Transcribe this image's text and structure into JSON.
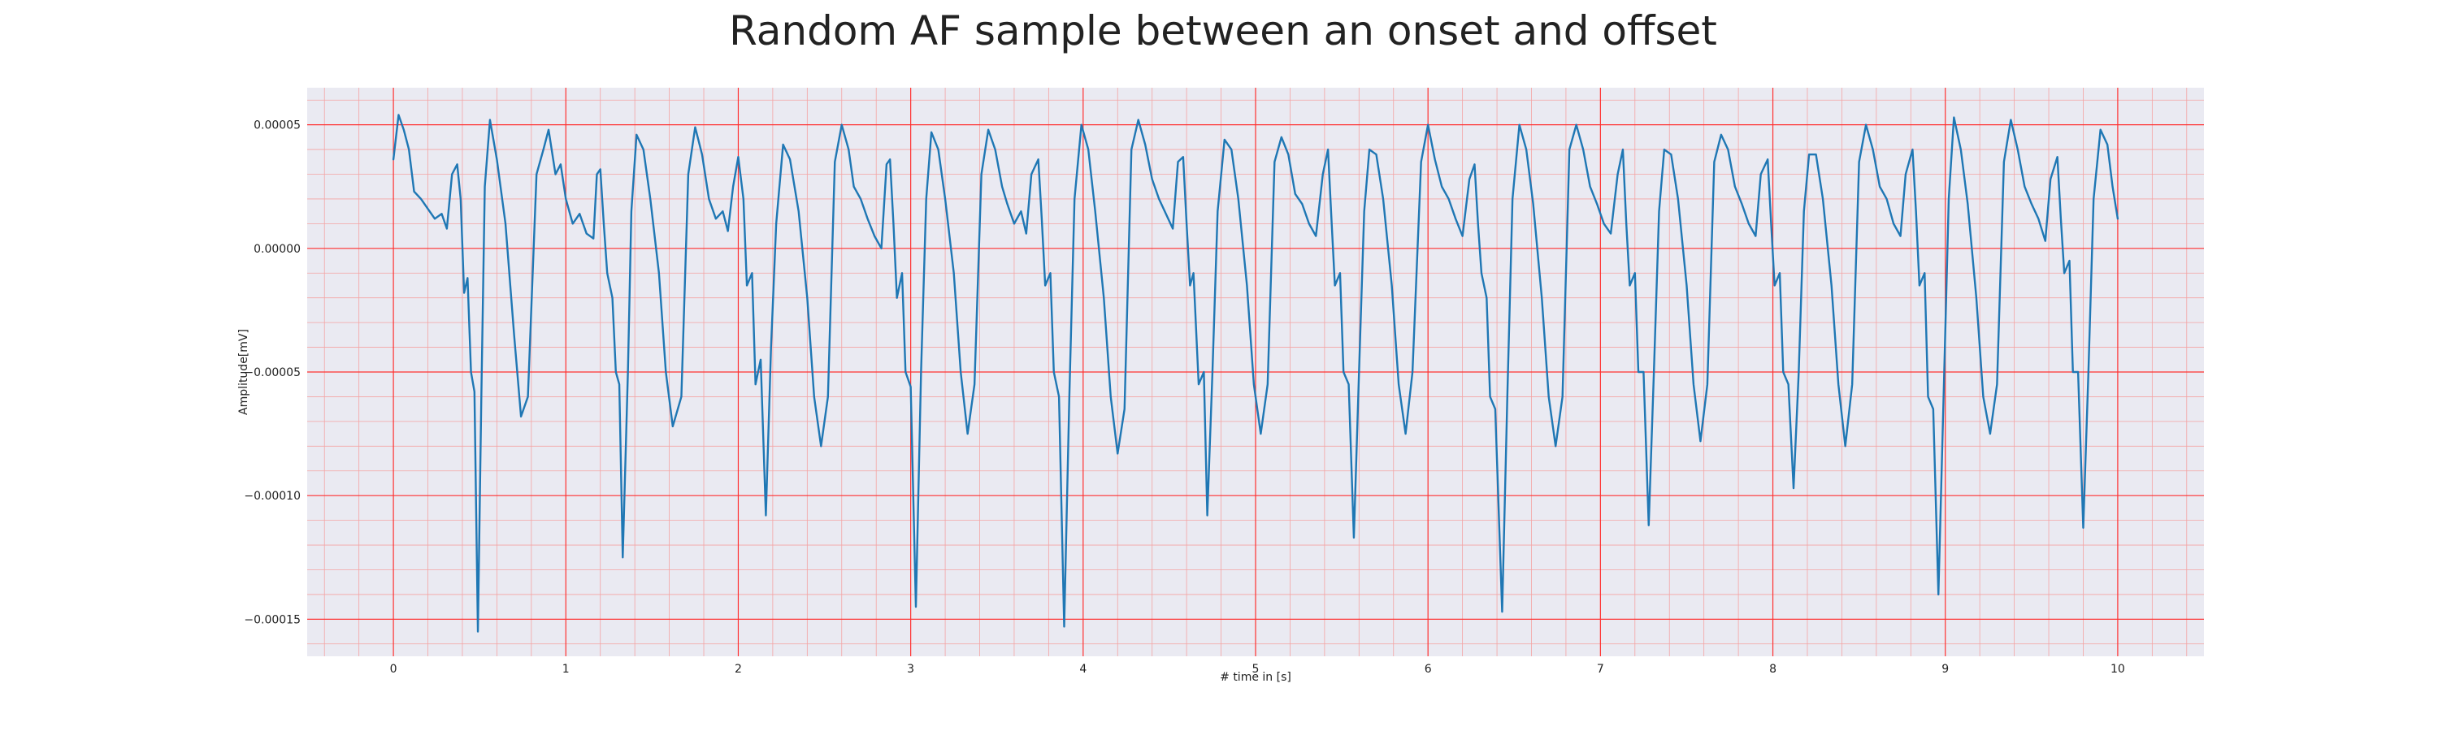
{
  "chart_data": {
    "type": "line",
    "title": "Random AF sample between an onset and offset",
    "xlabel": "# time in [s]",
    "ylabel": "Amplitude[mV]",
    "xlim": [
      -0.5,
      10.5
    ],
    "ylim": [
      -0.000165,
      6.5e-05
    ],
    "x_ticks": [
      0,
      1,
      2,
      3,
      4,
      5,
      6,
      7,
      8,
      9,
      10
    ],
    "x_tick_labels": [
      "0",
      "1",
      "2",
      "3",
      "4",
      "5",
      "6",
      "7",
      "8",
      "9",
      "10"
    ],
    "y_ticks": [
      5e-05,
      0.0,
      -5e-05,
      -0.0001,
      -0.00015
    ],
    "y_tick_labels": [
      "0.00005",
      "0.00000",
      "−0.00005",
      "−0.00010",
      "−0.00015"
    ],
    "grid": true,
    "minor_grid": true,
    "colors": {
      "line": "#1f77b4",
      "plot_background": "#eaeaf2",
      "major_grid": "#ff3030",
      "minor_grid": "#f4a3a3"
    },
    "series": [
      {
        "values": [
          [
            0.0,
            3.6e-05
          ],
          [
            0.03,
            5.4e-05
          ],
          [
            0.06,
            4.8e-05
          ],
          [
            0.09,
            4e-05
          ],
          [
            0.12,
            2.3e-05
          ],
          [
            0.16,
            2e-05
          ],
          [
            0.2,
            1.6e-05
          ],
          [
            0.24,
            1.2e-05
          ],
          [
            0.28,
            1.4e-05
          ],
          [
            0.31,
            8e-06
          ],
          [
            0.34,
            3e-05
          ],
          [
            0.37,
            3.4e-05
          ],
          [
            0.39,
            2e-05
          ],
          [
            0.41,
            -1.8e-05
          ],
          [
            0.43,
            -1.2e-05
          ],
          [
            0.45,
            -5e-05
          ],
          [
            0.47,
            -5.8e-05
          ],
          [
            0.49,
            -0.000155
          ],
          [
            0.51,
            -6e-05
          ],
          [
            0.53,
            2.5e-05
          ],
          [
            0.56,
            5.2e-05
          ],
          [
            0.6,
            3.6e-05
          ],
          [
            0.65,
            1e-05
          ],
          [
            0.7,
            -3.5e-05
          ],
          [
            0.74,
            -6.8e-05
          ],
          [
            0.78,
            -6e-05
          ],
          [
            0.83,
            3e-05
          ],
          [
            0.87,
            4e-05
          ],
          [
            0.9,
            4.8e-05
          ],
          [
            0.94,
            3e-05
          ],
          [
            0.97,
            3.4e-05
          ],
          [
            1.0,
            2e-05
          ],
          [
            1.04,
            1e-05
          ],
          [
            1.08,
            1.4e-05
          ],
          [
            1.12,
            6e-06
          ],
          [
            1.16,
            4e-06
          ],
          [
            1.18,
            3e-05
          ],
          [
            1.2,
            3.2e-05
          ],
          [
            1.22,
            1e-05
          ],
          [
            1.24,
            -1e-05
          ],
          [
            1.27,
            -2e-05
          ],
          [
            1.29,
            -5e-05
          ],
          [
            1.31,
            -5.5e-05
          ],
          [
            1.33,
            -0.000125
          ],
          [
            1.36,
            -5e-05
          ],
          [
            1.38,
            1.5e-05
          ],
          [
            1.41,
            4.6e-05
          ],
          [
            1.45,
            4e-05
          ],
          [
            1.49,
            2e-05
          ],
          [
            1.54,
            -1e-05
          ],
          [
            1.58,
            -5e-05
          ],
          [
            1.62,
            -7.2e-05
          ],
          [
            1.67,
            -6e-05
          ],
          [
            1.71,
            3e-05
          ],
          [
            1.75,
            4.9e-05
          ],
          [
            1.79,
            3.8e-05
          ],
          [
            1.83,
            2e-05
          ],
          [
            1.87,
            1.2e-05
          ],
          [
            1.91,
            1.5e-05
          ],
          [
            1.94,
            7e-06
          ],
          [
            1.97,
            2.5e-05
          ],
          [
            2.0,
            3.7e-05
          ],
          [
            2.03,
            2e-05
          ],
          [
            2.05,
            -1.5e-05
          ],
          [
            2.08,
            -1e-05
          ],
          [
            2.1,
            -5.5e-05
          ],
          [
            2.13,
            -4.5e-05
          ],
          [
            2.16,
            -0.000108
          ],
          [
            2.19,
            -4e-05
          ],
          [
            2.22,
            1e-05
          ],
          [
            2.26,
            4.2e-05
          ],
          [
            2.3,
            3.6e-05
          ],
          [
            2.35,
            1.5e-05
          ],
          [
            2.4,
            -2e-05
          ],
          [
            2.44,
            -6e-05
          ],
          [
            2.48,
            -8e-05
          ],
          [
            2.52,
            -6e-05
          ],
          [
            2.56,
            3.5e-05
          ],
          [
            2.6,
            5e-05
          ],
          [
            2.64,
            4e-05
          ],
          [
            2.67,
            2.5e-05
          ],
          [
            2.71,
            2e-05
          ],
          [
            2.75,
            1.2e-05
          ],
          [
            2.79,
            5e-06
          ],
          [
            2.83,
            0.0
          ],
          [
            2.86,
            3.4e-05
          ],
          [
            2.88,
            3.6e-05
          ],
          [
            2.9,
            1e-05
          ],
          [
            2.92,
            -2e-05
          ],
          [
            2.95,
            -1e-05
          ],
          [
            2.97,
            -5e-05
          ],
          [
            3.0,
            -5.6e-05
          ],
          [
            3.03,
            -0.000145
          ],
          [
            3.06,
            -5e-05
          ],
          [
            3.09,
            2e-05
          ],
          [
            3.12,
            4.7e-05
          ],
          [
            3.16,
            4e-05
          ],
          [
            3.2,
            2e-05
          ],
          [
            3.25,
            -1e-05
          ],
          [
            3.29,
            -5e-05
          ],
          [
            3.33,
            -7.5e-05
          ],
          [
            3.37,
            -5.5e-05
          ],
          [
            3.41,
            3e-05
          ],
          [
            3.45,
            4.8e-05
          ],
          [
            3.49,
            4e-05
          ],
          [
            3.53,
            2.5e-05
          ],
          [
            3.56,
            1.8e-05
          ],
          [
            3.6,
            1e-05
          ],
          [
            3.64,
            1.5e-05
          ],
          [
            3.67,
            6e-06
          ],
          [
            3.7,
            3e-05
          ],
          [
            3.74,
            3.6e-05
          ],
          [
            3.76,
            1.2e-05
          ],
          [
            3.78,
            -1.5e-05
          ],
          [
            3.81,
            -1e-05
          ],
          [
            3.83,
            -5e-05
          ],
          [
            3.86,
            -6e-05
          ],
          [
            3.89,
            -0.000153
          ],
          [
            3.92,
            -6e-05
          ],
          [
            3.95,
            2e-05
          ],
          [
            3.99,
            5e-05
          ],
          [
            4.03,
            4e-05
          ],
          [
            4.07,
            1.5e-05
          ],
          [
            4.12,
            -2e-05
          ],
          [
            4.16,
            -6e-05
          ],
          [
            4.2,
            -8.3e-05
          ],
          [
            4.24,
            -6.5e-05
          ],
          [
            4.28,
            4e-05
          ],
          [
            4.32,
            5.2e-05
          ],
          [
            4.36,
            4.2e-05
          ],
          [
            4.4,
            2.8e-05
          ],
          [
            4.44,
            2e-05
          ],
          [
            4.48,
            1.4e-05
          ],
          [
            4.52,
            8e-06
          ],
          [
            4.55,
            3.5e-05
          ],
          [
            4.58,
            3.7e-05
          ],
          [
            4.6,
            1e-05
          ],
          [
            4.62,
            -1.5e-05
          ],
          [
            4.64,
            -1e-05
          ],
          [
            4.67,
            -5.5e-05
          ],
          [
            4.7,
            -5e-05
          ],
          [
            4.72,
            -0.000108
          ],
          [
            4.75,
            -5e-05
          ],
          [
            4.78,
            1.5e-05
          ],
          [
            4.82,
            4.4e-05
          ],
          [
            4.86,
            4e-05
          ],
          [
            4.9,
            2e-05
          ],
          [
            4.95,
            -1.5e-05
          ],
          [
            4.99,
            -5.5e-05
          ],
          [
            5.03,
            -7.5e-05
          ],
          [
            5.07,
            -5.5e-05
          ],
          [
            5.11,
            3.5e-05
          ],
          [
            5.15,
            4.5e-05
          ],
          [
            5.19,
            3.8e-05
          ],
          [
            5.23,
            2.2e-05
          ],
          [
            5.27,
            1.8e-05
          ],
          [
            5.31,
            1e-05
          ],
          [
            5.35,
            5e-06
          ],
          [
            5.39,
            3e-05
          ],
          [
            5.42,
            4e-05
          ],
          [
            5.44,
            1.2e-05
          ],
          [
            5.46,
            -1.5e-05
          ],
          [
            5.49,
            -1e-05
          ],
          [
            5.51,
            -5e-05
          ],
          [
            5.54,
            -5.5e-05
          ],
          [
            5.57,
            -0.000117
          ],
          [
            5.6,
            -5e-05
          ],
          [
            5.63,
            1.5e-05
          ],
          [
            5.66,
            4e-05
          ],
          [
            5.7,
            3.8e-05
          ],
          [
            5.74,
            2e-05
          ],
          [
            5.79,
            -1.5e-05
          ],
          [
            5.83,
            -5.5e-05
          ],
          [
            5.87,
            -7.5e-05
          ],
          [
            5.91,
            -5e-05
          ],
          [
            5.96,
            3.5e-05
          ],
          [
            6.0,
            5e-05
          ],
          [
            6.04,
            3.6e-05
          ],
          [
            6.08,
            2.5e-05
          ],
          [
            6.12,
            2e-05
          ],
          [
            6.16,
            1.2e-05
          ],
          [
            6.2,
            5e-06
          ],
          [
            6.24,
            2.8e-05
          ],
          [
            6.27,
            3.4e-05
          ],
          [
            6.29,
            1e-05
          ],
          [
            6.31,
            -1e-05
          ],
          [
            6.34,
            -2e-05
          ],
          [
            6.36,
            -6e-05
          ],
          [
            6.39,
            -6.5e-05
          ],
          [
            6.43,
            -0.000147
          ],
          [
            6.46,
            -6e-05
          ],
          [
            6.49,
            2e-05
          ],
          [
            6.53,
            5e-05
          ],
          [
            6.57,
            4e-05
          ],
          [
            6.61,
            1.8e-05
          ],
          [
            6.66,
            -2e-05
          ],
          [
            6.7,
            -6e-05
          ],
          [
            6.74,
            -8e-05
          ],
          [
            6.78,
            -6e-05
          ],
          [
            6.82,
            4e-05
          ],
          [
            6.86,
            5e-05
          ],
          [
            6.9,
            4e-05
          ],
          [
            6.94,
            2.5e-05
          ],
          [
            6.98,
            1.8e-05
          ],
          [
            7.02,
            1e-05
          ],
          [
            7.06,
            6e-06
          ],
          [
            7.1,
            3e-05
          ],
          [
            7.13,
            4e-05
          ],
          [
            7.15,
            1e-05
          ],
          [
            7.17,
            -1.5e-05
          ],
          [
            7.2,
            -1e-05
          ],
          [
            7.22,
            -5e-05
          ],
          [
            7.25,
            -5e-05
          ],
          [
            7.28,
            -0.000112
          ],
          [
            7.31,
            -5e-05
          ],
          [
            7.34,
            1.5e-05
          ],
          [
            7.37,
            4e-05
          ],
          [
            7.41,
            3.8e-05
          ],
          [
            7.45,
            2e-05
          ],
          [
            7.5,
            -1.5e-05
          ],
          [
            7.54,
            -5.5e-05
          ],
          [
            7.58,
            -7.8e-05
          ],
          [
            7.62,
            -5.5e-05
          ],
          [
            7.66,
            3.5e-05
          ],
          [
            7.7,
            4.6e-05
          ],
          [
            7.74,
            4e-05
          ],
          [
            7.78,
            2.5e-05
          ],
          [
            7.82,
            1.8e-05
          ],
          [
            7.86,
            1e-05
          ],
          [
            7.9,
            5e-06
          ],
          [
            7.93,
            3e-05
          ],
          [
            7.97,
            3.6e-05
          ],
          [
            7.99,
            1e-05
          ],
          [
            8.01,
            -1.5e-05
          ],
          [
            8.04,
            -1e-05
          ],
          [
            8.06,
            -5e-05
          ],
          [
            8.09,
            -5.5e-05
          ],
          [
            8.12,
            -9.7e-05
          ],
          [
            8.15,
            -5e-05
          ],
          [
            8.18,
            1.5e-05
          ],
          [
            8.21,
            3.8e-05
          ],
          [
            8.25,
            3.8e-05
          ],
          [
            8.29,
            2e-05
          ],
          [
            8.34,
            -1.5e-05
          ],
          [
            8.38,
            -5.5e-05
          ],
          [
            8.42,
            -8e-05
          ],
          [
            8.46,
            -5.5e-05
          ],
          [
            8.5,
            3.5e-05
          ],
          [
            8.54,
            5e-05
          ],
          [
            8.58,
            4e-05
          ],
          [
            8.62,
            2.5e-05
          ],
          [
            8.66,
            2e-05
          ],
          [
            8.7,
            1e-05
          ],
          [
            8.74,
            5e-06
          ],
          [
            8.77,
            3e-05
          ],
          [
            8.81,
            4e-05
          ],
          [
            8.83,
            1.5e-05
          ],
          [
            8.85,
            -1.5e-05
          ],
          [
            8.88,
            -1e-05
          ],
          [
            8.9,
            -6e-05
          ],
          [
            8.93,
            -6.5e-05
          ],
          [
            8.96,
            -0.00014
          ],
          [
            8.99,
            -6e-05
          ],
          [
            9.02,
            2e-05
          ],
          [
            9.05,
            5.3e-05
          ],
          [
            9.09,
            4e-05
          ],
          [
            9.13,
            1.8e-05
          ],
          [
            9.18,
            -2e-05
          ],
          [
            9.22,
            -6e-05
          ],
          [
            9.26,
            -7.5e-05
          ],
          [
            9.3,
            -5.5e-05
          ],
          [
            9.34,
            3.5e-05
          ],
          [
            9.38,
            5.2e-05
          ],
          [
            9.42,
            4e-05
          ],
          [
            9.46,
            2.5e-05
          ],
          [
            9.5,
            1.8e-05
          ],
          [
            9.54,
            1.2e-05
          ],
          [
            9.58,
            3e-06
          ],
          [
            9.61,
            2.8e-05
          ],
          [
            9.65,
            3.7e-05
          ],
          [
            9.67,
            1.2e-05
          ],
          [
            9.69,
            -1e-05
          ],
          [
            9.72,
            -5e-06
          ],
          [
            9.74,
            -5e-05
          ],
          [
            9.77,
            -5e-05
          ],
          [
            9.8,
            -0.000113
          ],
          [
            9.83,
            -5e-05
          ],
          [
            9.86,
            2e-05
          ],
          [
            9.9,
            4.8e-05
          ],
          [
            9.94,
            4.2e-05
          ],
          [
            9.97,
            2.5e-05
          ],
          [
            10.0,
            1.2e-05
          ]
        ]
      }
    ]
  }
}
